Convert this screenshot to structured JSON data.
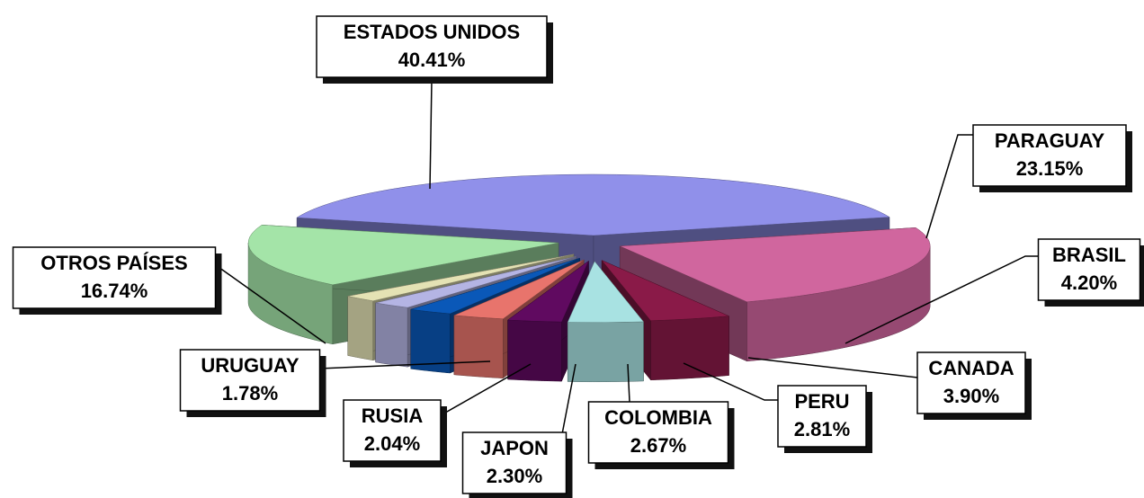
{
  "chart_data": {
    "type": "pie",
    "categories": [
      "ESTADOS UNIDOS",
      "PARAGUAY",
      "BRASIL",
      "CANADA",
      "PERU",
      "COLOMBIA",
      "JAPON",
      "RUSIA",
      "URUGUAY",
      "OTROS PAÍSES"
    ],
    "values": [
      40.41,
      23.15,
      4.2,
      3.9,
      2.81,
      2.67,
      2.3,
      2.04,
      1.78,
      16.74
    ],
    "value_labels": [
      "40.41%",
      "23.15%",
      "4.20%",
      "3.90%",
      "2.81%",
      "2.67%",
      "2.30%",
      "2.04%",
      "1.78%",
      "16.74%"
    ],
    "colors": [
      "#9090ea",
      "#d0669e",
      "#8a1a48",
      "#a8e2e2",
      "#600a60",
      "#e8746c",
      "#0a58b8",
      "#b4b4e4",
      "#e4e2b4",
      "#a4e4a8"
    ]
  }
}
